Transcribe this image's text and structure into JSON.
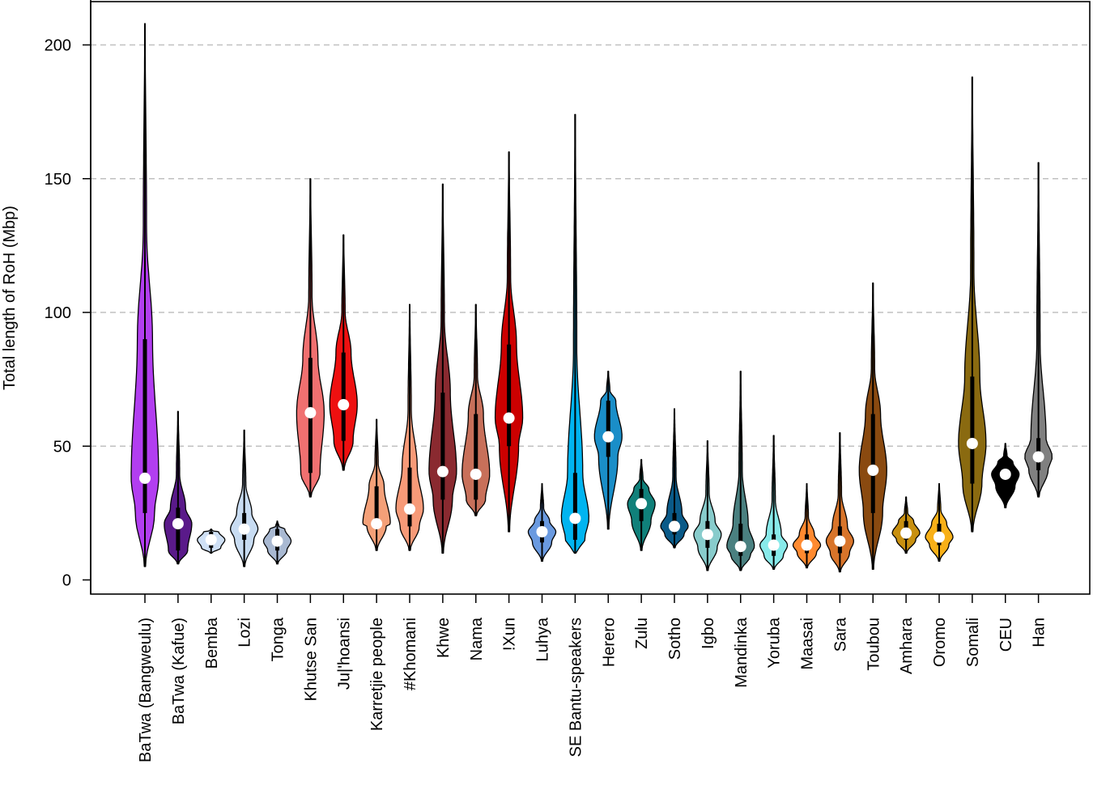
{
  "chart_data": {
    "type": "violin",
    "title": "",
    "xlabel": "",
    "ylabel": "Total length of RoH (Mbp)",
    "ylim": [
      -5,
      215
    ],
    "yticks": [
      0,
      50,
      100,
      150,
      200
    ],
    "grid": "horizontal-dashed",
    "categories": [
      "BaTwa (Bangweulu)",
      "BaTwa (Kafue)",
      "Bemba",
      "Lozi",
      "Tonga",
      "Khutse San",
      "Ju|'hoansi",
      "Karretjie people",
      "#Khomani",
      "Khwe",
      "Nama",
      "!Xun",
      "Luhya",
      "SE Bantu-speakers",
      "Herero",
      "Zulu",
      "Sotho",
      "Igbo",
      "Mandinka",
      "Yoruba",
      "Maasai",
      "Sara",
      "Toubou",
      "Amhara",
      "Oromo",
      "Somali",
      "CEU",
      "Han"
    ],
    "colors": [
      "#b23ef0",
      "#5a1a8a",
      "#cfe0f5",
      "#c8dcf2",
      "#a9b9d2",
      "#f07070",
      "#ee1010",
      "#f4a078",
      "#f79a78",
      "#8a2a30",
      "#c8705a",
      "#cc0000",
      "#6a9ae0",
      "#00b4f0",
      "#1a8ec8",
      "#10807a",
      "#0a5a88",
      "#88cccc",
      "#4a8080",
      "#88eaea",
      "#ff8a30",
      "#d8742a",
      "#8a4a10",
      "#c89010",
      "#f8b018",
      "#8a6a10",
      "#000000",
      "#808080"
    ],
    "stats": [
      {
        "min": 5,
        "q1": 25,
        "median": 38,
        "q3": 90,
        "max": 208
      },
      {
        "min": 6,
        "q1": 11,
        "median": 21,
        "q3": 27,
        "max": 63
      },
      {
        "min": 10,
        "q1": 12,
        "median": 15,
        "q3": 18,
        "max": 19
      },
      {
        "min": 5,
        "q1": 15,
        "median": 19,
        "q3": 25,
        "max": 56
      },
      {
        "min": 6,
        "q1": 11,
        "median": 14.5,
        "q3": 19,
        "max": 22
      },
      {
        "min": 31,
        "q1": 40,
        "median": 62.5,
        "q3": 83,
        "max": 150
      },
      {
        "min": 41,
        "q1": 52,
        "median": 65.5,
        "q3": 85,
        "max": 129
      },
      {
        "min": 11,
        "q1": 20,
        "median": 21,
        "q3": 35,
        "max": 60
      },
      {
        "min": 11,
        "q1": 20,
        "median": 26.5,
        "q3": 42,
        "max": 103
      },
      {
        "min": 10,
        "q1": 30,
        "median": 40.5,
        "q3": 70,
        "max": 148
      },
      {
        "min": 24,
        "q1": 30,
        "median": 39.5,
        "q3": 62,
        "max": 103
      },
      {
        "min": 18,
        "q1": 50,
        "median": 60.5,
        "q3": 88,
        "max": 160
      },
      {
        "min": 7,
        "q1": 14,
        "median": 18,
        "q3": 22,
        "max": 36
      },
      {
        "min": 10,
        "q1": 15,
        "median": 23,
        "q3": 40,
        "max": 174
      },
      {
        "min": 19,
        "q1": 46,
        "median": 53.5,
        "q3": 67,
        "max": 78
      },
      {
        "min": 11,
        "q1": 22,
        "median": 28.5,
        "q3": 34,
        "max": 45
      },
      {
        "min": 12,
        "q1": 17,
        "median": 20,
        "q3": 25,
        "max": 64
      },
      {
        "min": 3.5,
        "q1": 12,
        "median": 17,
        "q3": 22,
        "max": 52
      },
      {
        "min": 3.5,
        "q1": 9,
        "median": 12.5,
        "q3": 21,
        "max": 78
      },
      {
        "min": 4,
        "q1": 9,
        "median": 13,
        "q3": 17,
        "max": 54
      },
      {
        "min": 4.5,
        "q1": 10,
        "median": 13,
        "q3": 17,
        "max": 36
      },
      {
        "min": 3,
        "q1": 10,
        "median": 14.5,
        "q3": 20,
        "max": 55
      },
      {
        "min": 4,
        "q1": 25,
        "median": 41,
        "q3": 62,
        "max": 111
      },
      {
        "min": 10,
        "q1": 15,
        "median": 17.5,
        "q3": 22,
        "max": 31
      },
      {
        "min": 7,
        "q1": 13,
        "median": 16,
        "q3": 21,
        "max": 36
      },
      {
        "min": 18,
        "q1": 36,
        "median": 51,
        "q3": 76,
        "max": 188
      },
      {
        "min": 27,
        "q1": 35,
        "median": 39.5,
        "q3": 44,
        "max": 51
      },
      {
        "min": 31,
        "q1": 41,
        "median": 46,
        "q3": 53,
        "max": 156
      }
    ]
  }
}
